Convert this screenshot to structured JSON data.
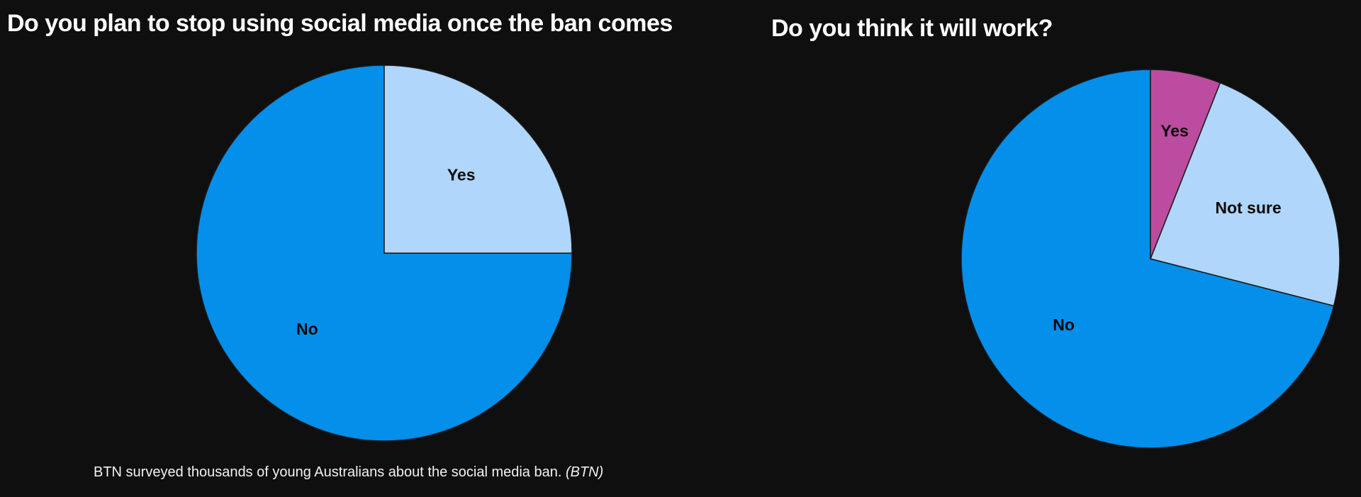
{
  "chart_data": [
    {
      "type": "pie",
      "title": "Do you plan to stop using social media once the ban comes",
      "slices": [
        {
          "label": "No",
          "value": 75,
          "color": "#038fea"
        },
        {
          "label": "Yes",
          "value": 25,
          "color": "#b0d6fb"
        }
      ]
    },
    {
      "type": "pie",
      "title": "Do you think it will work?",
      "slices": [
        {
          "label": "No",
          "value": 71,
          "color": "#038fea"
        },
        {
          "label": "Not sure",
          "value": 23,
          "color": "#b0d6fb"
        },
        {
          "label": "Yes",
          "value": 6,
          "color": "#bc4ca0"
        }
      ]
    }
  ],
  "caption": {
    "text": "BTN surveyed thousands of young Australians about the social media ban.",
    "credit": "(BTN)"
  }
}
